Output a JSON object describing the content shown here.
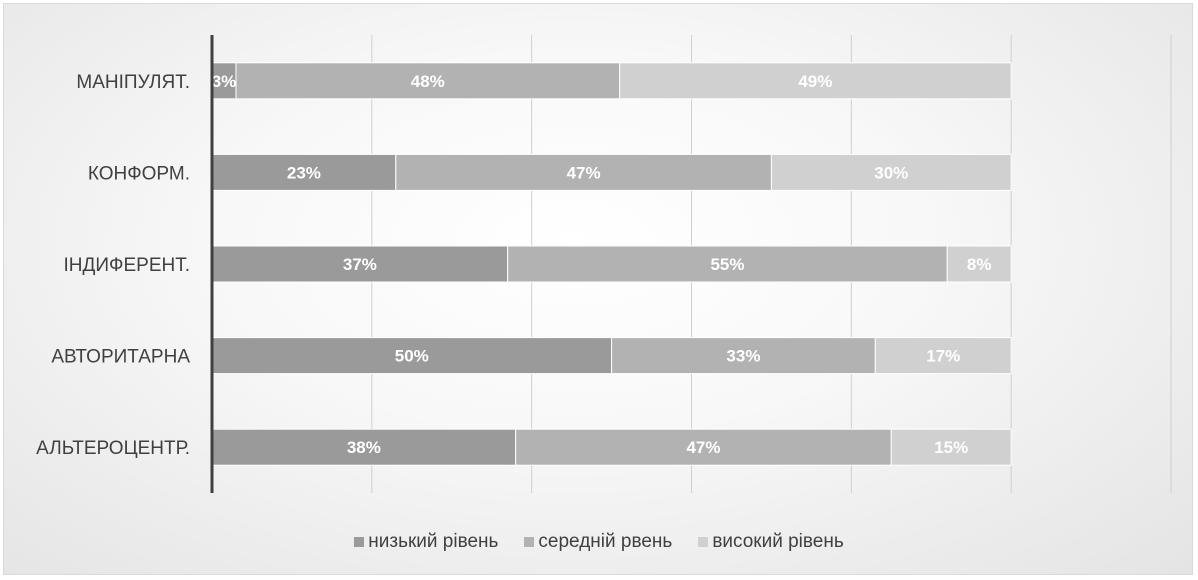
{
  "chart_data": {
    "type": "bar",
    "orientation": "horizontal",
    "stacked": true,
    "categories": [
      "МАНІПУЛЯТ.",
      "КОНФОРМ.",
      "ІНДИФЕРЕНТ.",
      "АВТОРИТАРНА",
      "АЛЬТЕРОЦЕНТР."
    ],
    "series": [
      {
        "name": "низький рівень",
        "values": [
          3,
          23,
          37,
          50,
          38
        ],
        "labels": [
          "3%",
          "23%",
          "37%",
          "50%",
          "38%"
        ],
        "color": "#9a9a9a"
      },
      {
        "name": "середній рвень",
        "values": [
          48,
          47,
          55,
          33,
          47
        ],
        "labels": [
          "48%",
          "47%",
          "55%",
          "33%",
          "47%"
        ],
        "color": "#b2b2b2"
      },
      {
        "name": "високий рівень",
        "values": [
          49,
          30,
          8,
          17,
          15
        ],
        "labels": [
          "49%",
          "30%",
          "8%",
          "17%",
          "15%"
        ],
        "color": "#d0d0d0"
      }
    ],
    "xlim": [
      0,
      120
    ],
    "grid": true,
    "legend_position": "bottom"
  }
}
